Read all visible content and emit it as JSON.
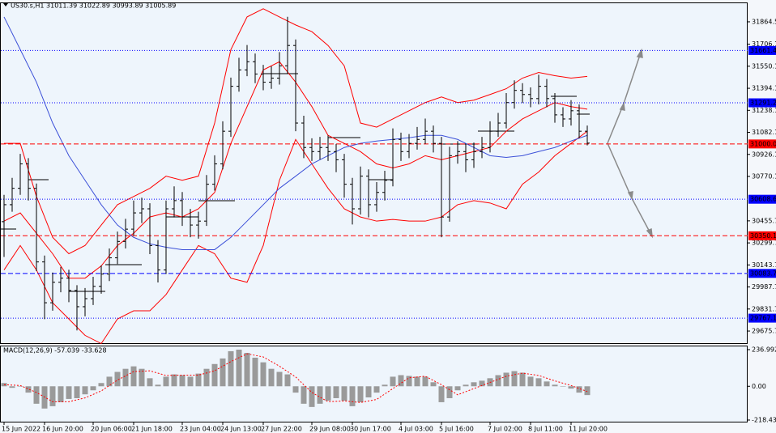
{
  "chart_data": [
    {
      "type": "candlestick",
      "title": "US30.s,H1  31011.39 31022.89 30993.89 31005.89",
      "categories": [
        "15 Jun 2022",
        null,
        null,
        null,
        null,
        "16 Jun 20:00",
        null,
        null,
        null,
        null,
        null,
        "20 Jun 06:00",
        null,
        null,
        null,
        null,
        "21 Jun 18:00",
        null,
        null,
        null,
        null,
        null,
        "23 Jun 04:00",
        null,
        null,
        null,
        null,
        "24 Jun 13:00",
        null,
        null,
        null,
        null,
        "27 Jun 22:00",
        null,
        null,
        null,
        null,
        null,
        "29 Jun 08:00",
        null,
        null,
        null,
        null,
        "30 Jun 17:00",
        null,
        null,
        null,
        null,
        null,
        "4 Jul 03:00",
        null,
        null,
        null,
        null,
        "5 Jul 16:00",
        null,
        null,
        null,
        null,
        null,
        "7 Jul 02:00",
        null,
        null,
        null,
        null,
        "8 Jul 11:00",
        null,
        null,
        null,
        null,
        "11 Jul 20:00",
        null,
        null
      ],
      "color": "#000000",
      "open": [
        30450,
        30570,
        30686,
        30859,
        30686,
        30165,
        29876,
        30021,
        30050,
        29963,
        29848,
        29905,
        29992,
        30079,
        30194,
        30310,
        30397,
        30512,
        30541,
        30281,
        30108,
        30541,
        30599,
        30483,
        30426,
        30454,
        30715,
        30859,
        31090,
        31408,
        31524,
        31582,
        31495,
        31437,
        31466,
        31553,
        31697,
        31148,
        30975,
        30946,
        30975,
        30946,
        30888,
        30715,
        30541,
        30772,
        30570,
        30657,
        30743,
        31032,
        30946,
        31004,
        31032,
        31090,
        31004,
        30483,
        30917,
        30946,
        30888,
        30946,
        30975,
        31090,
        31148,
        31293,
        31379,
        31350,
        31321,
        31408,
        31321,
        31206,
        31177,
        31235,
        31090
      ],
      "high": [
        30640,
        30760,
        30930,
        30900,
        30720,
        30210,
        30090,
        30130,
        30110,
        30000,
        29980,
        30060,
        30140,
        30260,
        30380,
        30470,
        30600,
        30620,
        30580,
        30320,
        30600,
        30700,
        30660,
        30540,
        30520,
        30780,
        30920,
        31160,
        31470,
        31610,
        31700,
        31640,
        31560,
        31550,
        31650,
        31900,
        31740,
        31200,
        31040,
        31050,
        31060,
        31000,
        30930,
        30760,
        30840,
        30820,
        30730,
        30810,
        31110,
        31080,
        31070,
        31120,
        31180,
        31130,
        31050,
        30980,
        31020,
        31000,
        31010,
        31050,
        31160,
        31220,
        31360,
        31450,
        31430,
        31400,
        31490,
        31460,
        31360,
        31260,
        31310,
        31280,
        31130
      ],
      "low": [
        30200,
        30520,
        30640,
        30600,
        30100,
        29760,
        29820,
        29950,
        29880,
        29680,
        29780,
        29860,
        29940,
        30030,
        30150,
        30260,
        30350,
        30440,
        30220,
        30020,
        30080,
        30480,
        30420,
        30340,
        30330,
        30420,
        30670,
        30820,
        31050,
        31370,
        31480,
        31430,
        31380,
        31390,
        31420,
        31500,
        31090,
        30900,
        30880,
        30890,
        30880,
        30800,
        30620,
        30430,
        30500,
        30480,
        30520,
        30600,
        30700,
        30880,
        30900,
        30960,
        31000,
        30940,
        30340,
        30450,
        30860,
        30800,
        30830,
        30900,
        30940,
        31050,
        31110,
        31250,
        31290,
        31260,
        31280,
        31260,
        31150,
        31120,
        31130,
        31040,
        30990
      ],
      "close": [
        30570,
        30686,
        30859,
        30686,
        30165,
        29876,
        30021,
        30050,
        29963,
        29848,
        29905,
        29992,
        30079,
        30194,
        30310,
        30397,
        30512,
        30541,
        30281,
        30108,
        30541,
        30599,
        30483,
        30426,
        30454,
        30715,
        30859,
        31090,
        31408,
        31524,
        31582,
        31495,
        31437,
        31466,
        31553,
        31697,
        31148,
        30975,
        30946,
        30975,
        30946,
        30888,
        30715,
        30541,
        30772,
        30570,
        30657,
        30743,
        31032,
        30946,
        31004,
        31032,
        31090,
        31004,
        30483,
        30917,
        30946,
        30888,
        30946,
        30975,
        31090,
        31148,
        31293,
        31379,
        31350,
        31321,
        31408,
        31321,
        31206,
        31177,
        31235,
        31090,
        31006
      ],
      "overlays": [
        {
          "color": "#ff0000",
          "x": [
            0,
            2,
            4,
            6,
            8,
            10,
            12,
            14,
            16,
            18,
            20,
            22,
            24,
            26,
            28,
            30,
            32,
            34,
            36,
            38,
            40,
            42,
            44,
            46,
            48,
            50,
            52,
            54,
            56,
            58,
            60,
            62,
            64,
            66,
            68,
            70,
            72
          ],
          "values": [
            31004,
            31004,
            30628,
            30339,
            30223,
            30281,
            30426,
            30570,
            30628,
            30686,
            30772,
            30743,
            30772,
            31148,
            31668,
            31899,
            31957,
            31899,
            31842,
            31795,
            31697,
            31553,
            31148,
            31119,
            31177,
            31235,
            31293,
            31333,
            31293,
            31310,
            31350,
            31391,
            31466,
            31506,
            31483,
            31466,
            31478
          ]
        },
        {
          "color": "#ff0000",
          "x": [
            0,
            2,
            4,
            6,
            8,
            10,
            12,
            14,
            16,
            18,
            20,
            22,
            24,
            26,
            28,
            30,
            32,
            34,
            36,
            38,
            40,
            42,
            44,
            46,
            48,
            50,
            52,
            54,
            56,
            58,
            60,
            62,
            64,
            66,
            68,
            70,
            72
          ],
          "values": [
            30454,
            30512,
            30368,
            30223,
            30050,
            30050,
            30137,
            30281,
            30368,
            30483,
            30512,
            30483,
            30541,
            30657,
            31004,
            31264,
            31524,
            31582,
            31437,
            31264,
            31061,
            31004,
            30946,
            30859,
            30830,
            30859,
            30917,
            30888,
            30917,
            30946,
            30975,
            31090,
            31177,
            31235,
            31293,
            31264,
            31246
          ]
        },
        {
          "color": "#ff0000",
          "x": [
            0,
            2,
            4,
            6,
            8,
            10,
            12,
            14,
            16,
            18,
            20,
            22,
            24,
            26,
            28,
            30,
            32,
            34,
            36,
            38,
            40,
            42,
            44,
            46,
            48,
            50,
            52,
            54,
            56,
            58,
            60,
            62,
            64,
            66,
            68,
            70,
            72
          ],
          "values": [
            30108,
            30281,
            30108,
            29876,
            29761,
            29645,
            29587,
            29761,
            29819,
            29819,
            29934,
            30108,
            30281,
            30223,
            30050,
            30021,
            30281,
            30743,
            31032,
            30859,
            30686,
            30541,
            30483,
            30454,
            30466,
            30454,
            30454,
            30483,
            30570,
            30599,
            30582,
            30541,
            30715,
            30801,
            30917,
            31004,
            31090
          ]
        },
        {
          "color": "#3c50d8",
          "x": [
            0,
            2,
            4,
            6,
            8,
            10,
            12,
            14,
            16,
            18,
            20,
            22,
            24,
            26,
            28,
            30,
            32,
            34,
            36,
            38,
            40,
            42,
            44,
            46,
            48,
            50,
            52,
            54,
            56,
            58,
            60,
            62,
            64,
            66,
            68,
            70,
            72
          ],
          "values": [
            31899,
            31668,
            31437,
            31148,
            30917,
            30743,
            30570,
            30426,
            30339,
            30293,
            30269,
            30252,
            30252,
            30252,
            30339,
            30454,
            30570,
            30686,
            30772,
            30859,
            30917,
            30975,
            31004,
            31021,
            31032,
            31044,
            31061,
            31061,
            31032,
            30975,
            30917,
            30905,
            30917,
            30946,
            30975,
            31021,
            31061
          ]
        }
      ],
      "levels": [
        {
          "value": 31661.46,
          "color": "#0000ff",
          "style": "dotted"
        },
        {
          "value": 31291.23,
          "color": "#0000ff",
          "style": "dotted"
        },
        {
          "value": 31000,
          "label": "31000.00",
          "color": "#ff0000",
          "style": "dashed"
        },
        {
          "value": 30608.62,
          "color": "#0000ff",
          "style": "dotted"
        },
        {
          "value": 30350.18,
          "color": "#ff0000",
          "style": "dashed"
        },
        {
          "value": {
            "value": 30083.7,
            "label": "30083.70"
          },
          "color": "#0000ff",
          "style": "dashed"
        },
        {
          "value": 29767.17,
          "color": "#0000ff",
          "style": "dotted"
        }
      ],
      "ylim": [
        29590,
        31996
      ],
      "yticks": [
        {
          "value": 31864.5,
          "label": "31864.50"
        },
        {
          "value": 31706.1,
          "label": "31706.10"
        },
        {
          "value": 31550.1,
          "label": "31550.10"
        },
        {
          "value": 31394.1,
          "label": "31394.10"
        },
        {
          "value": 31238.1,
          "label": "31238.10"
        },
        {
          "value": 31082.1,
          "label": "31082.10"
        },
        {
          "value": 30926.1,
          "label": "30926.10"
        },
        {
          "value": 30770.1,
          "label": "30770.10"
        },
        {
          "value": 30455.7,
          "label": "30455.70"
        },
        {
          "value": 30299.7,
          "label": "30299.70"
        },
        {
          "value": 30143.7,
          "label": "30143.70"
        },
        {
          "value": 29987.7,
          "label": "29987.70"
        },
        {
          "value": 29831.7,
          "label": "29831.70"
        },
        {
          "value": 29675.7,
          "label": "29675.70"
        }
      ]
    },
    {
      "type": "bar",
      "title": "MACD(12,26,9) -57.039 -33.628",
      "color": "#9a9a9a",
      "values": [
        21,
        -10,
        0,
        -41,
        -113,
        -144,
        -129,
        -103,
        -82,
        -77,
        -52,
        -26,
        21,
        62,
        93,
        113,
        129,
        113,
        52,
        10,
        62,
        77,
        72,
        62,
        82,
        113,
        144,
        180,
        227,
        237,
        216,
        185,
        155,
        113,
        93,
        77,
        -41,
        -113,
        -134,
        -113,
        -93,
        -77,
        -93,
        -129,
        -103,
        -72,
        -41,
        10,
        62,
        72,
        67,
        62,
        62,
        26,
        -103,
        -77,
        -26,
        10,
        26,
        36,
        52,
        72,
        88,
        98,
        88,
        62,
        52,
        31,
        10,
        0,
        -15,
        -41,
        -57
      ],
      "signal": {
        "color": "#ff0000",
        "x": [
          0,
          2,
          4,
          6,
          8,
          10,
          12,
          14,
          16,
          18,
          20,
          22,
          24,
          26,
          28,
          30,
          32,
          34,
          36,
          38,
          40,
          42,
          44,
          46,
          48,
          50,
          52,
          54,
          56,
          58,
          60,
          62,
          64,
          66,
          68,
          70,
          72
        ],
        "values": [
          10,
          5,
          -40,
          -100,
          -100,
          -75,
          -30,
          40,
          95,
          100,
          70,
          72,
          72,
          100,
          160,
          210,
          190,
          130,
          60,
          -40,
          -100,
          -95,
          -105,
          -85,
          -15,
          55,
          65,
          10,
          -55,
          -15,
          25,
          65,
          85,
          70,
          35,
          5,
          -34
        ]
      },
      "ylim": [
        -229,
        258
      ],
      "yticks": [
        236.992,
        {
          "value": 0,
          "label": "0.00"
        },
        -218.43
      ]
    }
  ]
}
